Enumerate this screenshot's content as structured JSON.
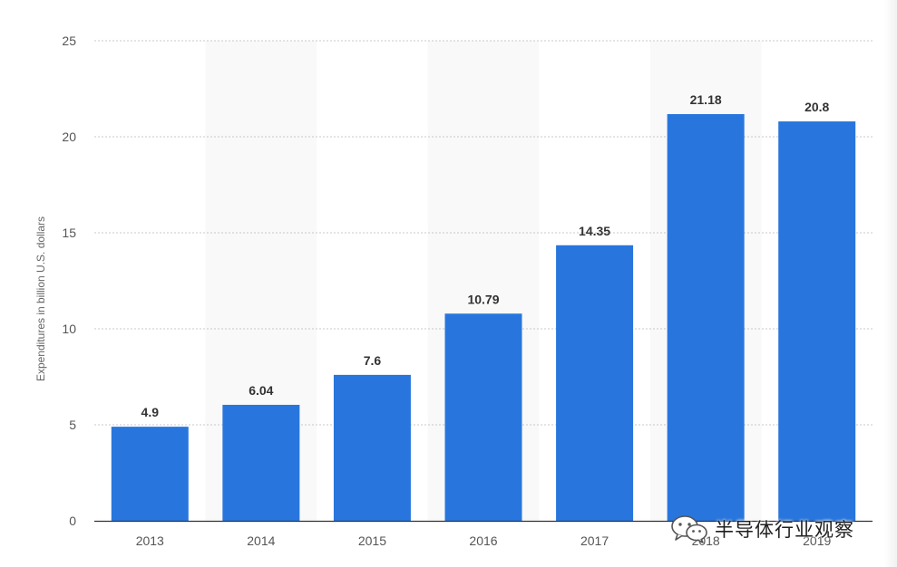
{
  "chart_data": {
    "type": "bar",
    "categories": [
      "2013",
      "2014",
      "2015",
      "2016",
      "2017",
      "2018",
      "2019"
    ],
    "values": [
      4.9,
      6.04,
      7.6,
      10.79,
      14.35,
      21.18,
      20.8
    ],
    "value_labels": [
      "4.9",
      "6.04",
      "7.6",
      "10.79",
      "14.35",
      "21.18",
      "20.8"
    ],
    "title": "",
    "xlabel": "",
    "ylabel": "Expenditures in billion U.S. dollars",
    "ylim": [
      0,
      25
    ],
    "yticks": [
      0,
      5,
      10,
      15,
      20,
      25
    ],
    "grid": true,
    "bar_color": "#2876dd",
    "band_color": "#f9f9f9"
  },
  "watermark": {
    "text": "半导体行业观察",
    "icon": "wechat-icon"
  }
}
